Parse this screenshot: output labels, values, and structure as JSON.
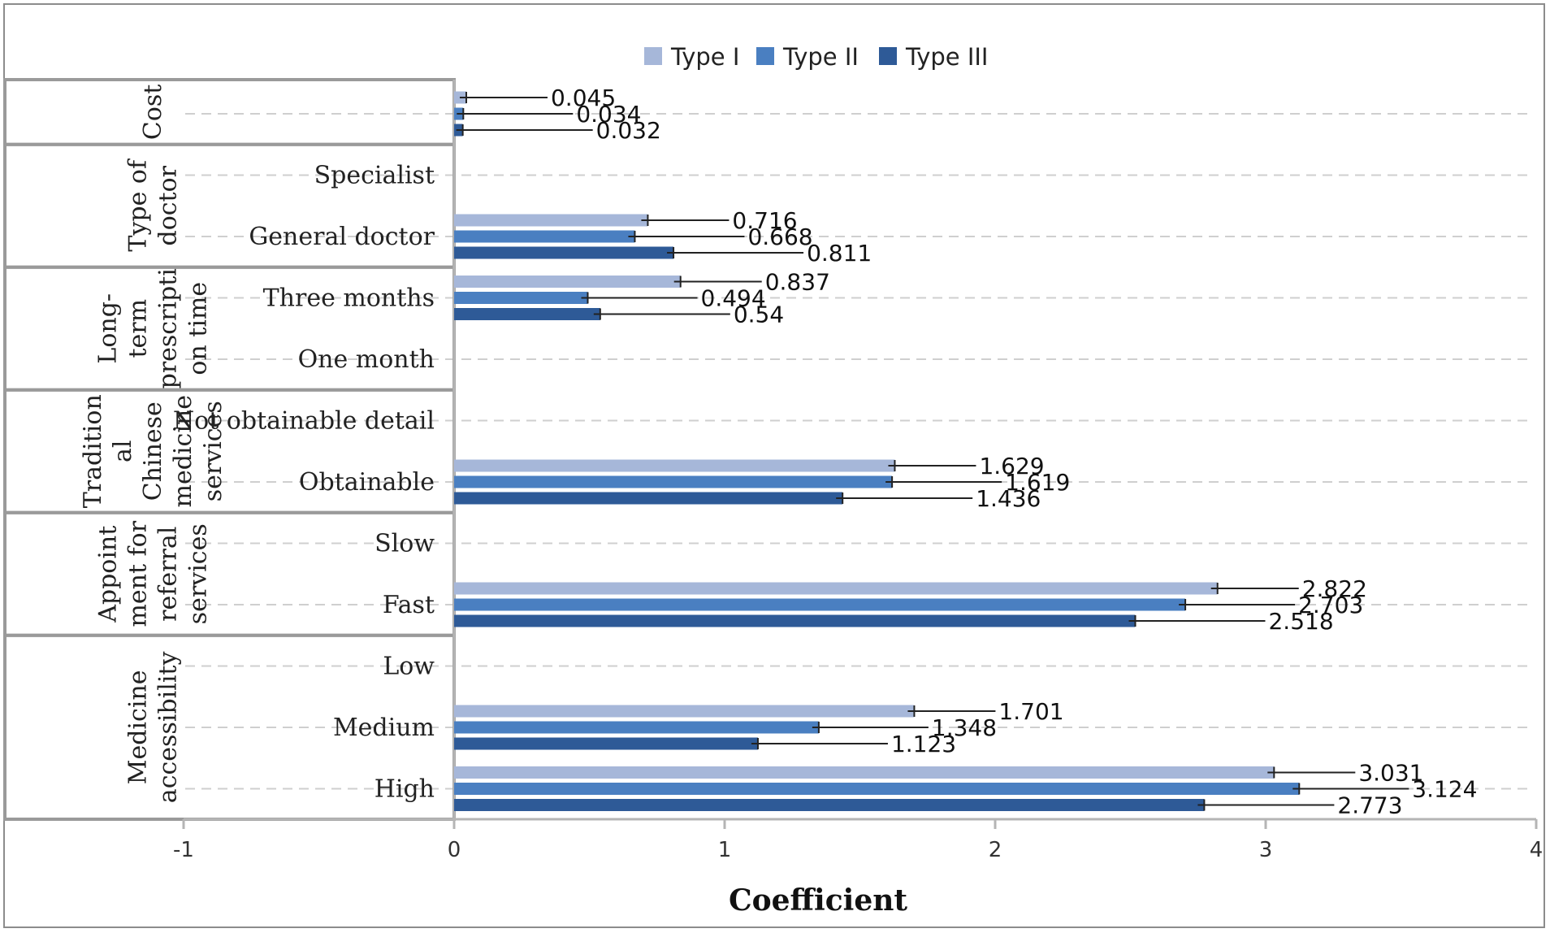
{
  "chart_data": {
    "type": "bar",
    "orientation": "horizontal",
    "title": "",
    "xlabel": "Coefficient",
    "ylabel": "",
    "xlim": [
      -1,
      4
    ],
    "xticks": [
      "-1",
      "0",
      "1",
      "2",
      "3",
      "4"
    ],
    "legend_position": "top-center",
    "grid": "horizontal dashed",
    "series_colors": [
      "#a6b7d9",
      "#4a7fc1",
      "#2e5a97"
    ],
    "series": [
      {
        "name": "Type I"
      },
      {
        "name": "Type II"
      },
      {
        "name": "Type III"
      }
    ],
    "groups": [
      {
        "name": "Cost",
        "name_lines": [
          "Cost"
        ],
        "categories": [
          {
            "label": "",
            "values": [
              0.045,
              0.034,
              0.032
            ]
          }
        ]
      },
      {
        "name": "Type of doctor",
        "name_lines": [
          "Type of",
          "doctor"
        ],
        "categories": [
          {
            "label": "Specialist",
            "values": null
          },
          {
            "label": "General doctor",
            "values": [
              0.716,
              0.668,
              0.811
            ]
          }
        ]
      },
      {
        "name": "Long-term prescription time",
        "name_lines": [
          "Long-",
          "term",
          "prescripti",
          "on time"
        ],
        "categories": [
          {
            "label": "Three months",
            "values": [
              0.837,
              0.494,
              0.54
            ]
          },
          {
            "label": "One month",
            "values": null
          }
        ]
      },
      {
        "name": "Traditional Chinese medicine services",
        "name_lines": [
          "Tradition",
          "al",
          "Chinese",
          "medicine",
          "services"
        ],
        "categories": [
          {
            "label": "Not obtainable detail",
            "values": null
          },
          {
            "label": "Obtainable",
            "values": [
              1.629,
              1.619,
              1.436
            ]
          }
        ]
      },
      {
        "name": "Appointment for referral services",
        "name_lines": [
          "Appoint",
          "ment for",
          "referral",
          "services"
        ],
        "categories": [
          {
            "label": "Slow",
            "values": null
          },
          {
            "label": "Fast",
            "values": [
              2.822,
              2.703,
              2.518
            ]
          }
        ]
      },
      {
        "name": "Medicine accessibility",
        "name_lines": [
          "Medicine",
          "accessibility"
        ],
        "categories": [
          {
            "label": "Low",
            "values": null
          },
          {
            "label": "Medium",
            "values": [
              1.701,
              1.348,
              1.123
            ]
          },
          {
            "label": "High",
            "values": [
              3.031,
              3.124,
              2.773
            ]
          }
        ]
      }
    ],
    "value_labels": {
      "Cost": [
        "0.045",
        "0.034",
        "0.032"
      ],
      "General doctor": [
        "0.716",
        "0.668",
        "0.811"
      ],
      "Three months": [
        "0.837",
        "0.494",
        "0.54"
      ],
      "Obtainable": [
        "1.629",
        "1.619",
        "1.436"
      ],
      "Fast": [
        "2.822",
        "2.703",
        "2.518"
      ],
      "Medium": [
        "1.701",
        "1.348",
        "1.123"
      ],
      "High": [
        "3.031",
        "3.124",
        "2.773"
      ]
    }
  }
}
